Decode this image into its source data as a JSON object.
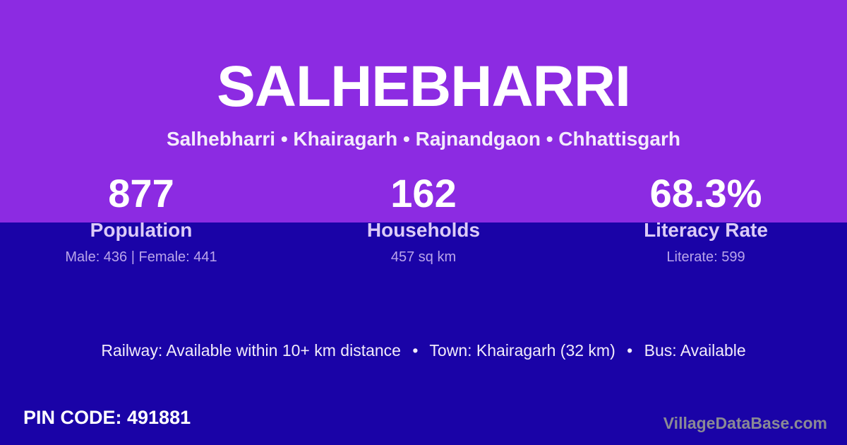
{
  "header": {
    "title": "SALHEBHARRI",
    "breadcrumb": "Salhebharri • Khairagarh • Rajnandgaon • Chhattisgarh"
  },
  "stats": [
    {
      "value": "877",
      "label": "Population",
      "detail": "Male: 436 | Female: 441"
    },
    {
      "value": "162",
      "label": "Households",
      "detail": "457 sq km"
    },
    {
      "value": "68.3%",
      "label": "Literacy Rate",
      "detail": "Literate: 599"
    }
  ],
  "transport": {
    "railway": "Railway: Available within 10+ km distance",
    "bullet": "•",
    "town": "Town: Khairagarh (32 km)",
    "bus": "Bus: Available"
  },
  "footer": {
    "pin_code": "PIN CODE: 491881",
    "watermark": "VillageDataBase.com"
  },
  "colors": {
    "top_band": "#8C2BE2",
    "bottom_band": "#1A03A7",
    "label_text": "#DCCBF7",
    "detail_text": "#B9A5EA",
    "watermark_text": "#8A8A94"
  }
}
